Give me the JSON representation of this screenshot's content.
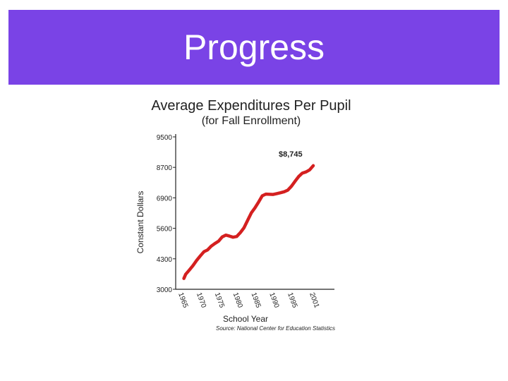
{
  "slide": {
    "title": "Progress",
    "header_color": "#7a43e6"
  },
  "chart_data": {
    "type": "line",
    "title": "Average Expenditures Per Pupil",
    "subtitle": "(for Fall Enrollment)",
    "xlabel": "School Year",
    "ylabel": "Constant Dollars",
    "source": "Source: National Center for Education Statistics",
    "y_ticks": [
      3000,
      4300,
      5600,
      6900,
      8700,
      9500
    ],
    "x_ticks": [
      "1965",
      "1970",
      "1975",
      "1980",
      "1985",
      "1990",
      "1995",
      "2001"
    ],
    "annotation": "$8,745",
    "grid": false,
    "series": [
      {
        "color": "#d42020",
        "x": [
          1965.5,
          1966,
          1967,
          1968,
          1969,
          1970,
          1971,
          1972,
          1973,
          1974,
          1975,
          1976,
          1977,
          1978,
          1979,
          1980,
          1981,
          1982,
          1983,
          1984,
          1985,
          1986,
          1987,
          1988,
          1989,
          1990,
          1991,
          1992,
          1993,
          1994,
          1995,
          1996,
          1997,
          1998,
          1999,
          2000,
          2001
        ],
        "y": [
          3460,
          3640,
          3820,
          4010,
          4230,
          4420,
          4600,
          4680,
          4840,
          4950,
          5050,
          5230,
          5310,
          5270,
          5220,
          5250,
          5420,
          5620,
          5940,
          6260,
          6470,
          6720,
          7020,
          7120,
          7110,
          7100,
          7150,
          7200,
          7260,
          7350,
          7580,
          7880,
          8160,
          8360,
          8430,
          8550,
          8745
        ]
      }
    ]
  }
}
